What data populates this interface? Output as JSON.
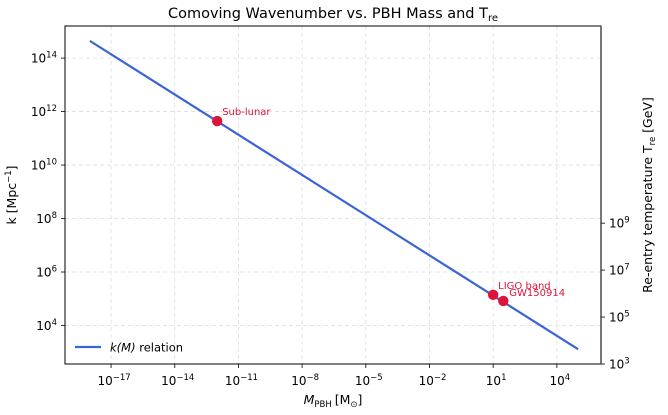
{
  "chart_data": {
    "type": "line",
    "title": "Comoving Wavenumber vs. PBH Mass and T",
    "title_sub": "re",
    "xlabel": "M",
    "xlabel_sub": "PBH",
    "xlabel_unit": "[M",
    "xlabel_unit_sub": "⊙",
    "xlabel_unit_close": "]",
    "ylabel": "k [Mpc",
    "ylabel_sup": "−1",
    "ylabel_close": "]",
    "y2label": "Re-entry temperature T",
    "y2label_sub": "re",
    "y2label_unit": " [GeV]",
    "xscale": "log",
    "yscale": "log",
    "xlim_log10": [
      -19.17,
      6.08
    ],
    "ylim_log10": [
      2.56,
      15.2
    ],
    "y2lim_log10": [
      3.0,
      17.4
    ],
    "grid": true,
    "legend": {
      "placement": "lower-left",
      "entries": [
        {
          "label_pre": "k(M)",
          "label_post": " relation",
          "color": "#3a63d8"
        }
      ]
    },
    "xticks": [
      {
        "base": "10",
        "exp": "−17",
        "log10": -17
      },
      {
        "base": "10",
        "exp": "−14",
        "log10": -14
      },
      {
        "base": "10",
        "exp": "−11",
        "log10": -11
      },
      {
        "base": "10",
        "exp": "−8",
        "log10": -8
      },
      {
        "base": "10",
        "exp": "−5",
        "log10": -5
      },
      {
        "base": "10",
        "exp": "−2",
        "log10": -2
      },
      {
        "base": "10",
        "exp": "1",
        "log10": 1
      },
      {
        "base": "10",
        "exp": "4",
        "log10": 4
      }
    ],
    "yticks": [
      {
        "base": "10",
        "exp": "4",
        "log10": 4
      },
      {
        "base": "10",
        "exp": "6",
        "log10": 6
      },
      {
        "base": "10",
        "exp": "8",
        "log10": 8
      },
      {
        "base": "10",
        "exp": "10",
        "log10": 10
      },
      {
        "base": "10",
        "exp": "12",
        "log10": 12
      },
      {
        "base": "10",
        "exp": "14",
        "log10": 14
      }
    ],
    "y2ticks": [
      {
        "base": "10",
        "exp": "3",
        "log10": 3
      },
      {
        "base": "10",
        "exp": "5",
        "log10": 5
      },
      {
        "base": "10",
        "exp": "7",
        "log10": 7
      },
      {
        "base": "10",
        "exp": "9",
        "log10": 9
      }
    ],
    "series": [
      {
        "name": "k(M) relation",
        "color": "#3a63d8",
        "x": [
          1e-18,
          100000.0
        ],
        "y": [
          440000000000000.0,
          1300.0
        ]
      }
    ],
    "points": [
      {
        "label": "Sub-lunar",
        "x": 1e-12,
        "y": 440000000000.0,
        "color": "#dc143c"
      },
      {
        "label": "LIGO band",
        "x": 10,
        "y": 140000.0,
        "color": "#dc143c"
      },
      {
        "label": "GW150914",
        "x": 30,
        "y": 83000.0,
        "color": "#dc143c"
      }
    ]
  }
}
